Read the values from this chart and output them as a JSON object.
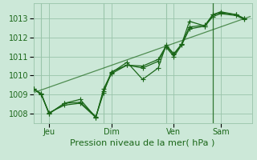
{
  "bg_color": "#cce8d8",
  "grid_color": "#99c4aa",
  "line_color": "#1a6618",
  "tick_label_color": "#1a6618",
  "xlabel": "Pression niveau de la mer( hPa )",
  "ylim": [
    1007.5,
    1013.8
  ],
  "yticks": [
    1008,
    1009,
    1010,
    1011,
    1012,
    1013
  ],
  "xlim": [
    0,
    252
  ],
  "x_tick_positions": [
    18,
    90,
    162,
    216
  ],
  "x_tick_labels": [
    "Jeu",
    "Dim",
    "Ven",
    "Sam"
  ],
  "vlines": [
    9,
    81,
    153,
    207
  ],
  "trend_x": [
    0,
    250
  ],
  "trend_y": [
    1009.1,
    1013.1
  ],
  "line1_x": [
    0,
    9,
    18,
    36,
    54,
    72,
    81,
    90,
    108,
    126,
    144,
    153,
    162,
    171,
    180,
    198,
    207,
    216,
    234,
    243
  ],
  "line1_y": [
    1009.3,
    1009.05,
    1008.0,
    1008.55,
    1008.75,
    1007.8,
    1009.3,
    1010.15,
    1010.7,
    1009.8,
    1010.4,
    1011.6,
    1011.15,
    1011.65,
    1012.85,
    1012.6,
    1013.2,
    1013.35,
    1013.2,
    1013.0
  ],
  "line2_x": [
    0,
    9,
    18,
    36,
    54,
    72,
    81,
    90,
    108,
    126,
    144,
    153,
    162,
    171,
    180,
    198,
    207,
    216,
    234,
    243
  ],
  "line2_y": [
    1009.3,
    1009.05,
    1008.0,
    1008.55,
    1008.6,
    1007.85,
    1009.1,
    1010.2,
    1010.55,
    1010.5,
    1010.85,
    1011.55,
    1011.1,
    1011.65,
    1012.55,
    1012.65,
    1013.2,
    1013.3,
    1013.2,
    1013.0
  ],
  "line3_x": [
    0,
    9,
    18,
    36,
    54,
    72,
    81,
    90,
    108,
    126,
    144,
    153,
    162,
    171,
    180,
    198,
    207,
    216,
    234,
    243
  ],
  "line3_y": [
    1009.3,
    1009.0,
    1008.05,
    1008.45,
    1008.55,
    1007.8,
    1009.2,
    1010.1,
    1010.55,
    1010.4,
    1010.75,
    1011.5,
    1011.0,
    1011.6,
    1012.45,
    1012.6,
    1013.1,
    1013.25,
    1013.15,
    1012.95
  ],
  "marker": "+",
  "markersize": 4,
  "linewidth": 0.9,
  "trend_linewidth": 0.9,
  "font_size_label": 8,
  "font_size_tick": 7
}
